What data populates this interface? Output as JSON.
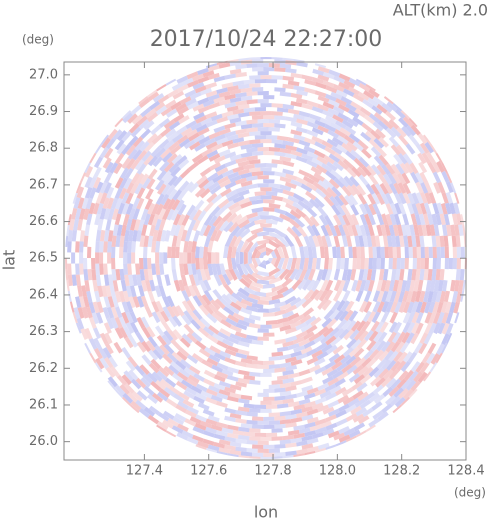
{
  "chart_data": {
    "type": "radar",
    "title": "2017/10/24 22:27:00",
    "subtitle": "ALT(km) 2.0",
    "xlabel": "lon",
    "ylabel": "lat",
    "xunit": "(deg)",
    "yunit": "(deg)",
    "xlim": [
      127.15,
      128.4
    ],
    "ylim": [
      25.95,
      27.035
    ],
    "xticks": [
      127.4,
      127.6,
      127.8,
      {
        "value": 128,
        "label": "128.0"
      },
      128.2,
      128.4
    ],
    "yticks": [
      {
        "value": 26,
        "label": "26.0"
      },
      26.1,
      26.2,
      26.3,
      26.4,
      26.5,
      26.6,
      26.7,
      26.8,
      26.9,
      {
        "value": 27,
        "label": "27.0"
      }
    ],
    "colors": [
      "#f3b7b9",
      "#c2c5f3"
    ]
  }
}
